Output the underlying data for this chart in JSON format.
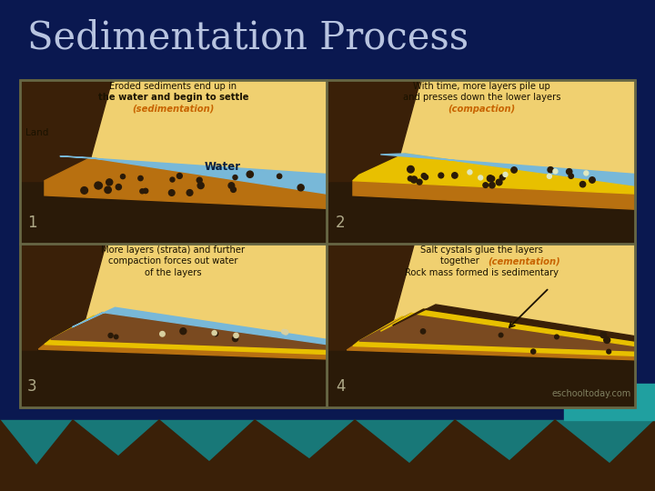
{
  "title": "Sedimentation Process",
  "title_color": "#b8c4e0",
  "bg_color": "#0a1850",
  "panel_bg": "#f0d070",
  "dark_ground": "#2a1a08",
  "land_color": "#3a2008",
  "sediment_brown": "#b87010",
  "sediment_orange": "#c88020",
  "yellow_layer": "#d8a800",
  "bright_yellow": "#e8c000",
  "water_color": "#78b8d8",
  "water_dark": "#5090b0",
  "teal_bg": "#187878",
  "watermark": "eschooltoday.com",
  "text_dark": "#1a1200",
  "num_color": "#b0aa88",
  "land_label": "Land",
  "water_label": "Water",
  "p1_text1": "Eroded sediments end up in",
  "p1_text2": "the water and begin to settle",
  "p1_text3": "(sedimentation)",
  "p2_text1": "With time, more layers pile up",
  "p2_text2": "and presses down the lower layers",
  "p2_text3": "(compaction)",
  "p3_text1": "More layers (strata) and further",
  "p3_text2": "compaction forces out water",
  "p3_text3": "of the layers",
  "p4_text1": "Salt cystals glue the layers",
  "p4_text2": "together (cementation)",
  "p4_text3": "Rock mass formed is sedimentary",
  "highlight_color": "#c86400",
  "figsize": [
    7.2,
    5.4
  ],
  "dpi": 100
}
